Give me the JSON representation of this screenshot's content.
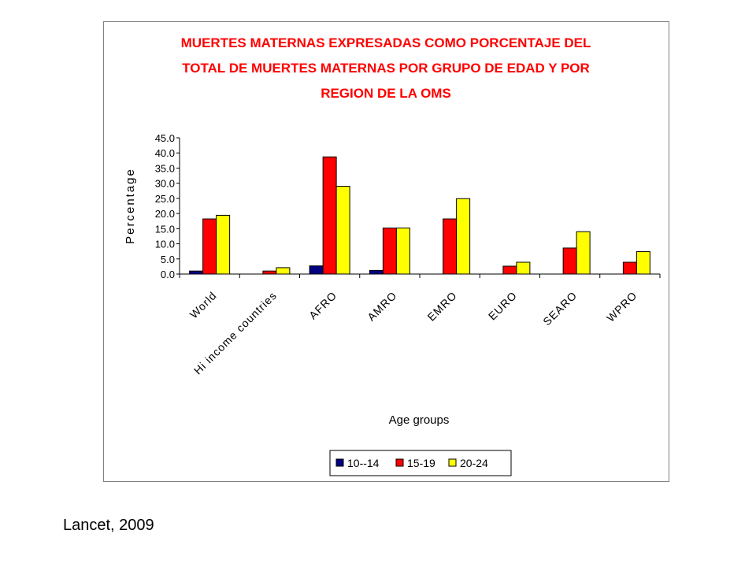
{
  "chart_data": {
    "type": "bar",
    "title_lines": [
      "MUERTES MATERNAS EXPRESADAS COMO PORCENTAJE DEL",
      "TOTAL DE MUERTES MATERNAS POR GRUPO DE EDAD Y POR",
      "REGION DE LA OMS"
    ],
    "xlabel": "Age groups",
    "ylabel": "Percentage",
    "ylim": [
      0,
      45
    ],
    "yticks": [
      "0.0",
      "5.0",
      "10.0",
      "15.0",
      "20.0",
      "25.0",
      "30.0",
      "35.0",
      "40.0",
      "45.0"
    ],
    "categories": [
      "World",
      "Hi income countries",
      "AFRO",
      "AMRO",
      "EMRO",
      "EURO",
      "SEARO",
      "WPRO"
    ],
    "series": [
      {
        "name": "10--14",
        "color": "#000080",
        "values": [
          1.0,
          0.0,
          2.7,
          1.2,
          0.0,
          0.0,
          0.0,
          0.0
        ]
      },
      {
        "name": "15-19",
        "color": "#FF0000",
        "values": [
          18.2,
          1.0,
          38.7,
          15.2,
          18.2,
          2.6,
          8.6,
          3.9
        ]
      },
      {
        "name": "20-24",
        "color": "#FFFF00",
        "values": [
          19.4,
          2.1,
          29.0,
          15.2,
          24.9,
          3.9,
          14.0,
          7.4
        ]
      }
    ],
    "grid": false,
    "legend_position": "bottom",
    "title_color": "#FF0000"
  },
  "citation": "Lancet, 2009"
}
